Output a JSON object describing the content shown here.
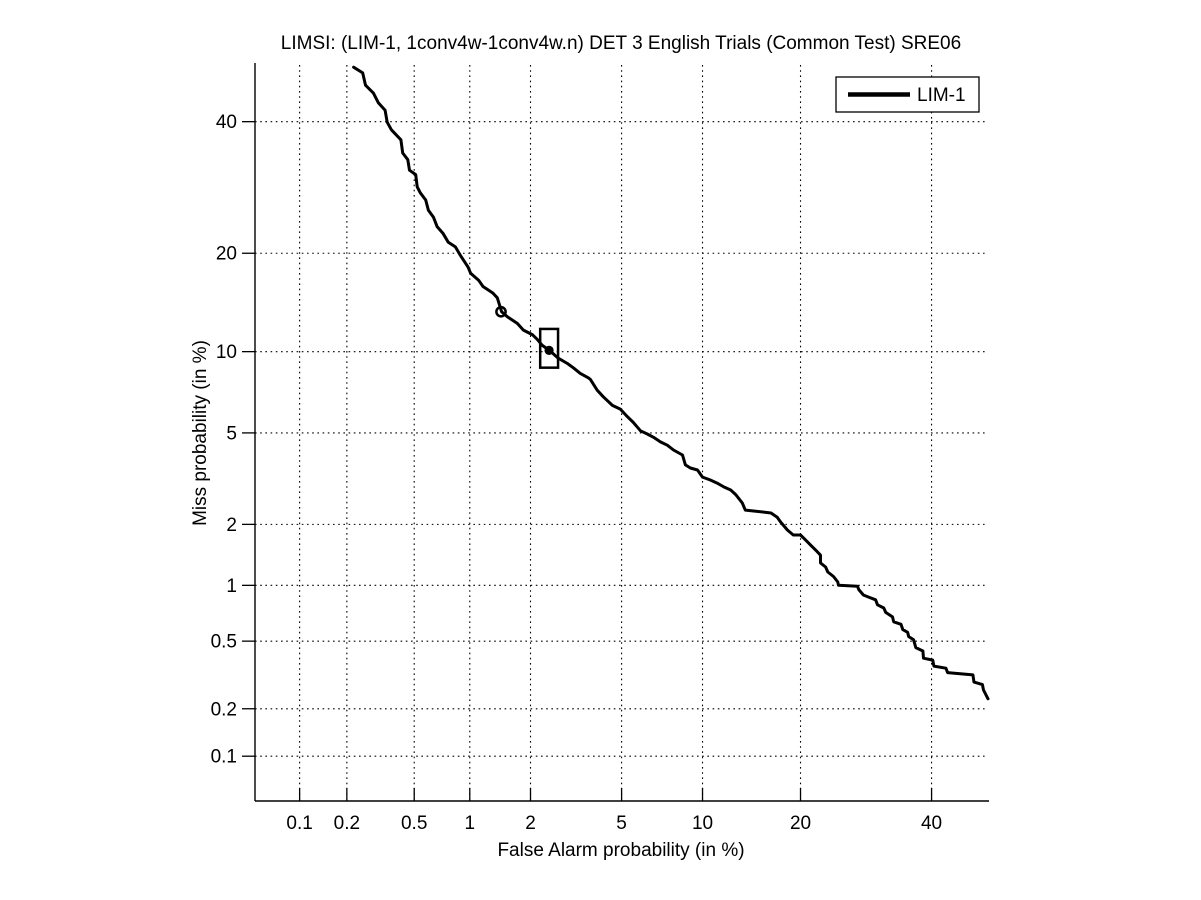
{
  "figure": {
    "background": "#ffffff"
  },
  "chart_data": {
    "type": "line",
    "variant": "DET curve (normal-deviate scale on both axes)",
    "title": "LIMSI: (LIM-1, 1conv4w-1conv4w.n) DET 3 English Trials (Common Test) SRE06",
    "xlabel": "False Alarm probability (in %)",
    "ylabel": "Miss probability (in %)",
    "xlim_pct": [
      0.05,
      50
    ],
    "ylim_pct": [
      0.05,
      50
    ],
    "xticks_pct": [
      0.1,
      0.2,
      0.5,
      1,
      2,
      5,
      10,
      20,
      40
    ],
    "yticks_pct": [
      0.1,
      0.2,
      0.5,
      1,
      2,
      5,
      10,
      20,
      40
    ],
    "grid": true,
    "colors": {
      "curve": "#000000",
      "grid": "#000000",
      "axis": "#000000",
      "background": "#ffffff"
    },
    "legend": {
      "position": "top-right",
      "entries": [
        {
          "label": "LIM-1",
          "color": "#000000"
        }
      ]
    },
    "series": [
      {
        "name": "LIM-1",
        "points_fa_miss_pct": [
          [
            0.22,
            49.6
          ],
          [
            0.25,
            48.6
          ],
          [
            0.26,
            46.4
          ],
          [
            0.29,
            45.0
          ],
          [
            0.31,
            43.3
          ],
          [
            0.34,
            42.0
          ],
          [
            0.35,
            39.9
          ],
          [
            0.37,
            38.6
          ],
          [
            0.42,
            36.9
          ],
          [
            0.43,
            34.7
          ],
          [
            0.46,
            33.6
          ],
          [
            0.47,
            31.9
          ],
          [
            0.51,
            31.2
          ],
          [
            0.52,
            29.3
          ],
          [
            0.54,
            28.4
          ],
          [
            0.58,
            27.3
          ],
          [
            0.6,
            25.8
          ],
          [
            0.64,
            24.8
          ],
          [
            0.67,
            23.5
          ],
          [
            0.72,
            22.6
          ],
          [
            0.77,
            21.4
          ],
          [
            0.84,
            20.8
          ],
          [
            0.89,
            19.8
          ],
          [
            0.98,
            18.3
          ],
          [
            1.01,
            17.6
          ],
          [
            1.11,
            16.8
          ],
          [
            1.17,
            16.1
          ],
          [
            1.31,
            15.4
          ],
          [
            1.38,
            14.9
          ],
          [
            1.45,
            13.5
          ],
          [
            1.55,
            13.0
          ],
          [
            1.73,
            12.4
          ],
          [
            1.85,
            11.8
          ],
          [
            2.04,
            11.4
          ],
          [
            2.15,
            11.0
          ],
          [
            2.27,
            10.5
          ],
          [
            2.45,
            10.1
          ],
          [
            2.68,
            9.5
          ],
          [
            2.95,
            9.1
          ],
          [
            3.13,
            8.8
          ],
          [
            3.36,
            8.4
          ],
          [
            3.64,
            8.1
          ],
          [
            3.71,
            8.0
          ],
          [
            3.97,
            7.3
          ],
          [
            4.21,
            6.9
          ],
          [
            4.59,
            6.4
          ],
          [
            4.94,
            6.2
          ],
          [
            5.27,
            5.8
          ],
          [
            5.57,
            5.5
          ],
          [
            5.94,
            5.1
          ],
          [
            6.31,
            4.95
          ],
          [
            6.66,
            4.8
          ],
          [
            7.07,
            4.6
          ],
          [
            7.5,
            4.46
          ],
          [
            7.9,
            4.26
          ],
          [
            8.51,
            4.06
          ],
          [
            8.72,
            3.69
          ],
          [
            9.08,
            3.58
          ],
          [
            9.61,
            3.51
          ],
          [
            10.0,
            3.27
          ],
          [
            10.6,
            3.18
          ],
          [
            11.2,
            3.08
          ],
          [
            11.8,
            2.96
          ],
          [
            12.4,
            2.87
          ],
          [
            12.9,
            2.73
          ],
          [
            13.5,
            2.51
          ],
          [
            13.8,
            2.33
          ],
          [
            15.7,
            2.28
          ],
          [
            16.5,
            2.26
          ],
          [
            17.2,
            2.16
          ],
          [
            17.6,
            2.05
          ],
          [
            18.4,
            1.88
          ],
          [
            19.1,
            1.78
          ],
          [
            20.0,
            1.78
          ],
          [
            20.6,
            1.69
          ],
          [
            21.3,
            1.59
          ],
          [
            22.0,
            1.5
          ],
          [
            22.6,
            1.42
          ],
          [
            22.6,
            1.3
          ],
          [
            23.3,
            1.24
          ],
          [
            23.6,
            1.17
          ],
          [
            24.4,
            1.11
          ],
          [
            25.0,
            1.04
          ],
          [
            25.1,
            1.0
          ],
          [
            27.9,
            0.99
          ],
          [
            28.1,
            0.95
          ],
          [
            28.8,
            0.89
          ],
          [
            29.5,
            0.87
          ],
          [
            30.7,
            0.84
          ],
          [
            31.0,
            0.79
          ],
          [
            32.0,
            0.76
          ],
          [
            32.3,
            0.72
          ],
          [
            33.4,
            0.68
          ],
          [
            33.6,
            0.64
          ],
          [
            34.8,
            0.62
          ],
          [
            35.1,
            0.58
          ],
          [
            35.9,
            0.56
          ],
          [
            36.1,
            0.53
          ],
          [
            36.9,
            0.51
          ],
          [
            37.3,
            0.46
          ],
          [
            38.5,
            0.44
          ],
          [
            38.6,
            0.4
          ],
          [
            40.2,
            0.39
          ],
          [
            40.4,
            0.36
          ],
          [
            42.5,
            0.35
          ],
          [
            42.8,
            0.33
          ],
          [
            47.3,
            0.32
          ],
          [
            47.5,
            0.29
          ],
          [
            49.0,
            0.28
          ],
          [
            49.2,
            0.26
          ],
          [
            50.0,
            0.23
          ]
        ]
      }
    ],
    "markers": [
      {
        "shape": "open-circle",
        "fa_pct": 1.44,
        "miss_pct": 13.5
      },
      {
        "shape": "open-rect",
        "fa_pct_range": [
          2.22,
          2.68
        ],
        "miss_pct_range": [
          8.8,
          11.9
        ]
      },
      {
        "shape": "filled-dot",
        "fa_pct": 2.44,
        "miss_pct": 10.1
      }
    ]
  }
}
